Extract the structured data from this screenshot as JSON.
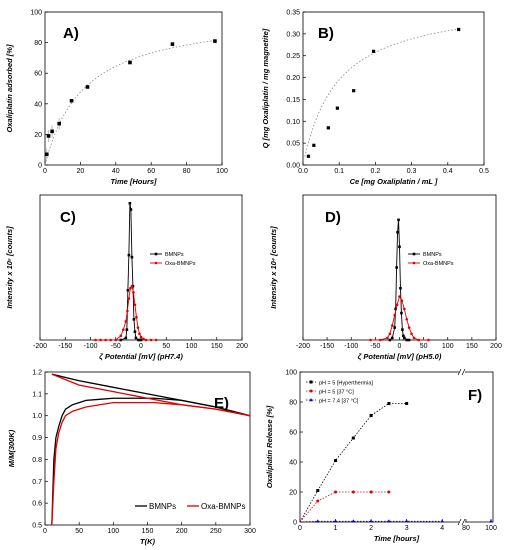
{
  "chart_data": [
    {
      "id": "A",
      "type": "scatter",
      "panel_label": "A)",
      "xlabel": "Time [Hours]",
      "ylabel": "Oxaliplatin adsorbed [%]",
      "xlim": [
        0,
        100
      ],
      "ylim": [
        0,
        100
      ],
      "xticks": [
        0,
        20,
        40,
        60,
        80,
        100
      ],
      "yticks": [
        0,
        20,
        40,
        60,
        80,
        100
      ],
      "series": [
        {
          "x": [
            1,
            2,
            4,
            8,
            15,
            24,
            48,
            72,
            96
          ],
          "y": [
            7,
            19,
            22,
            27,
            42,
            51,
            67,
            79,
            81
          ],
          "fit": true
        }
      ]
    },
    {
      "id": "B",
      "type": "scatter",
      "panel_label": "B)",
      "xlabel": "Ce [mg Oxaliplatin / mL ]",
      "ylabel": "Q [mg Oxaliplatin / mg magnetite]",
      "xlim": [
        0,
        0.5
      ],
      "ylim": [
        0,
        0.35
      ],
      "xticks": [
        0.0,
        0.1,
        0.2,
        0.3,
        0.4,
        0.5
      ],
      "yticks": [
        0.0,
        0.05,
        0.1,
        0.15,
        0.2,
        0.25,
        0.3,
        0.35
      ],
      "series": [
        {
          "x": [
            0.015,
            0.03,
            0.07,
            0.095,
            0.14,
            0.195,
            0.43
          ],
          "y": [
            0.02,
            0.045,
            0.085,
            0.13,
            0.17,
            0.26,
            0.31
          ],
          "fit": true
        }
      ]
    },
    {
      "id": "C",
      "type": "line",
      "panel_label": "C)",
      "xlabel": "ζ Potential [mV] (pH7.4)",
      "ylabel": "Intensity x 10⁵ [counts]",
      "xlim": [
        -200,
        200
      ],
      "ylim": [
        0,
        7
      ],
      "xticks": [
        -200,
        -150,
        -100,
        -50,
        0,
        50,
        100,
        150,
        200
      ],
      "legend": "center-right",
      "series": [
        {
          "name": "BMNPs",
          "color": "#000000",
          "x": [
            -40,
            -30,
            -28,
            -26,
            -24,
            -22,
            -20,
            -18,
            -16,
            -14,
            -12,
            -10,
            -5,
            0
          ],
          "y": [
            0,
            0.1,
            0.5,
            2.4,
            4.1,
            6.6,
            6.3,
            4.0,
            2.6,
            1.0,
            0.4,
            0.1,
            0,
            0
          ]
        },
        {
          "name": "Oxa-BMNPs",
          "color": "#e00000",
          "x": [
            -90,
            -80,
            -70,
            -60,
            -50,
            -40,
            -35,
            -30,
            -27,
            -24,
            -21,
            -18,
            -15,
            -12,
            -9,
            -6,
            -3,
            0,
            5,
            10,
            20,
            30
          ],
          "y": [
            0,
            0,
            0,
            0,
            0,
            0.2,
            0.5,
            0.9,
            1.4,
            2.0,
            2.5,
            2.6,
            2.3,
            1.7,
            1.1,
            0.6,
            0.3,
            0.15,
            0.05,
            0,
            0,
            0
          ]
        }
      ]
    },
    {
      "id": "D",
      "type": "line",
      "panel_label": "D)",
      "xlabel": "ζ Potential [mV] (pH5.0)",
      "ylabel": "Intensity x 10⁴ [counts]",
      "xlim": [
        -200,
        200
      ],
      "ylim": [
        0,
        7
      ],
      "xticks": [
        -200,
        -150,
        -100,
        -50,
        0,
        50,
        100,
        150,
        200
      ],
      "legend": "center-right",
      "series": [
        {
          "name": "BMNPs",
          "color": "#000000",
          "x": [
            -20,
            -15,
            -10,
            -8,
            -6,
            -4,
            -2,
            0,
            2,
            4,
            6,
            8,
            10,
            15,
            20
          ],
          "y": [
            0,
            0.1,
            0.6,
            1.5,
            3.5,
            5.2,
            5.8,
            4.5,
            2.5,
            1.3,
            0.5,
            0.2,
            0.1,
            0,
            0
          ]
        },
        {
          "name": "Oxa-BMNPs",
          "color": "#e00000",
          "x": [
            -60,
            -40,
            -25,
            -20,
            -15,
            -10,
            -5,
            0,
            5,
            10,
            15,
            20,
            25,
            30,
            40,
            60
          ],
          "y": [
            0,
            0,
            0.1,
            0.3,
            0.7,
            1.2,
            1.7,
            2.1,
            1.9,
            1.5,
            1.0,
            0.6,
            0.3,
            0.1,
            0,
            0
          ]
        }
      ]
    },
    {
      "id": "E",
      "type": "line",
      "panel_label": "E)",
      "xlabel": "T(K)",
      "ylabel": "M/M(300K)",
      "xlim": [
        0,
        300
      ],
      "ylim": [
        0.5,
        1.2
      ],
      "xticks": [
        0,
        50,
        100,
        150,
        200,
        250,
        300
      ],
      "yticks": [
        0.5,
        0.6,
        0.7,
        0.8,
        0.9,
        1.0,
        1.1,
        1.2
      ],
      "legend": "bottom-center",
      "series": [
        {
          "name": "BMNPs",
          "color": "#000000",
          "fc_x": [
            10,
            50,
            100,
            150,
            200,
            250,
            300
          ],
          "fc_y": [
            1.19,
            1.16,
            1.13,
            1.1,
            1.07,
            1.04,
            1.0
          ],
          "zfc_x": [
            10,
            13,
            16,
            20,
            25,
            30,
            40,
            50,
            60,
            80,
            100,
            130,
            160,
            200,
            250,
            300
          ],
          "zfc_y": [
            0.5,
            0.8,
            0.9,
            0.95,
            1.0,
            1.03,
            1.05,
            1.06,
            1.07,
            1.075,
            1.08,
            1.08,
            1.08,
            1.07,
            1.04,
            1.0
          ]
        },
        {
          "name": "Oxa-BMNPs",
          "color": "#e00000",
          "fc_x": [
            10,
            50,
            100,
            150,
            200,
            250,
            300
          ],
          "fc_y": [
            1.19,
            1.14,
            1.11,
            1.08,
            1.05,
            1.03,
            1.0
          ],
          "zfc_x": [
            10,
            13,
            16,
            20,
            25,
            30,
            40,
            50,
            60,
            80,
            100,
            130,
            160,
            200,
            250,
            300
          ],
          "zfc_y": [
            0.5,
            0.7,
            0.85,
            0.92,
            0.97,
            1.0,
            1.02,
            1.03,
            1.04,
            1.05,
            1.06,
            1.06,
            1.06,
            1.05,
            1.03,
            1.0
          ]
        }
      ]
    },
    {
      "id": "F",
      "type": "scatter",
      "panel_label": "F)",
      "xlabel": "Time [hours]",
      "ylabel": "Oxaliplatin Release [%]",
      "xlim": [
        0,
        100
      ],
      "ylim": [
        0,
        100
      ],
      "xtick_labels": [
        "0",
        "1",
        "2",
        "3",
        "4",
        "80",
        "100"
      ],
      "yticks": [
        0,
        20,
        40,
        60,
        80,
        100
      ],
      "axis_break": true,
      "legend": "top-left",
      "series": [
        {
          "name": "pH = 5 [Hyperthermia]",
          "color": "#000000",
          "marker": "square",
          "x": [
            0.5,
            1.0,
            1.5,
            2.0,
            2.5,
            3.0
          ],
          "y": [
            21,
            41,
            56,
            71,
            79,
            79
          ]
        },
        {
          "name": "pH = 5 [37 °C]",
          "color": "#e00000",
          "marker": "circle",
          "x": [
            0.5,
            1.0,
            1.5,
            2.0,
            2.5
          ],
          "y": [
            14,
            20,
            20,
            20,
            20
          ]
        },
        {
          "name": "pH = 7.4 [37 °C]",
          "color": "#0000cc",
          "marker": "triangle",
          "x": [
            0.5,
            1.0,
            1.5,
            2.0,
            2.5,
            3.0,
            4.0,
            100
          ],
          "y": [
            0.5,
            0.5,
            0.5,
            0.5,
            0.5,
            0.5,
            0.5,
            0.5
          ]
        }
      ]
    }
  ]
}
